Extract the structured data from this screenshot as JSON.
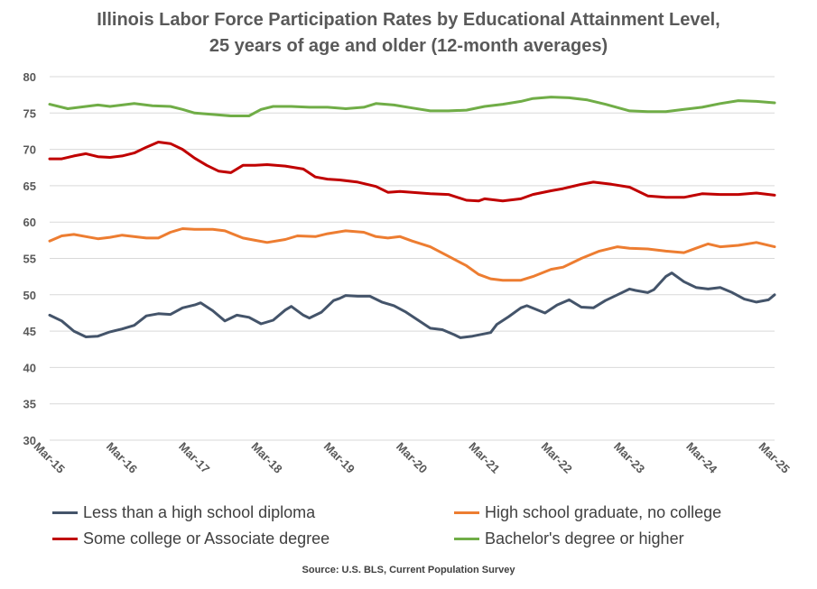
{
  "title_line1": "Illinois Labor Force Participation Rates by Educational Attainment Level,",
  "title_line2": "25 years of age and older (12-month averages)",
  "source": "Source: U.S. BLS, Current Population Survey",
  "chart_data": {
    "type": "line",
    "title": "Illinois Labor Force Participation Rates by Educational Attainment Level, 25 years of age and older (12-month averages)",
    "xlabel": "",
    "ylabel": "",
    "ylim": [
      30,
      80
    ],
    "yticks": [
      30,
      35,
      40,
      45,
      50,
      55,
      60,
      65,
      70,
      75,
      80
    ],
    "xticks": [
      "Mar-15",
      "Mar-16",
      "Mar-17",
      "Mar-18",
      "Mar-19",
      "Mar-20",
      "Mar-21",
      "Mar-22",
      "Mar-23",
      "Mar-24",
      "Mar-25"
    ],
    "x_start": "Mar-15",
    "x_end": "Mar-25",
    "grid": true,
    "legend_position": "bottom",
    "series": [
      {
        "name": "Less than a high school diploma",
        "color": "#44546A",
        "keypoints": [
          [
            "Mar-15",
            47.2
          ],
          [
            "May-15",
            46.4
          ],
          [
            "Jul-15",
            45.0
          ],
          [
            "Sep-15",
            44.2
          ],
          [
            "Nov-15",
            44.3
          ],
          [
            "Jan-16",
            44.9
          ],
          [
            "Mar-16",
            45.3
          ],
          [
            "May-16",
            45.8
          ],
          [
            "Jul-16",
            47.1
          ],
          [
            "Sep-16",
            47.4
          ],
          [
            "Nov-16",
            47.3
          ],
          [
            "Jan-17",
            48.2
          ],
          [
            "Mar-17",
            48.6
          ],
          [
            "Apr-17",
            48.9
          ],
          [
            "Jun-17",
            47.8
          ],
          [
            "Aug-17",
            46.4
          ],
          [
            "Oct-17",
            47.2
          ],
          [
            "Dec-17",
            46.9
          ],
          [
            "Feb-18",
            46.0
          ],
          [
            "Apr-18",
            46.5
          ],
          [
            "Jun-18",
            47.9
          ],
          [
            "Jul-18",
            48.4
          ],
          [
            "Sep-18",
            47.2
          ],
          [
            "Oct-18",
            46.8
          ],
          [
            "Dec-18",
            47.6
          ],
          [
            "Feb-19",
            49.2
          ],
          [
            "Mar-19",
            49.5
          ],
          [
            "Apr-19",
            49.9
          ],
          [
            "Jun-19",
            49.8
          ],
          [
            "Aug-19",
            49.8
          ],
          [
            "Oct-19",
            49.0
          ],
          [
            "Dec-19",
            48.5
          ],
          [
            "Feb-20",
            47.6
          ],
          [
            "Apr-20",
            46.5
          ],
          [
            "Jun-20",
            45.4
          ],
          [
            "Aug-20",
            45.2
          ],
          [
            "Oct-20",
            44.5
          ],
          [
            "Nov-20",
            44.1
          ],
          [
            "Jan-21",
            44.3
          ],
          [
            "Apr-21",
            44.8
          ],
          [
            "May-21",
            45.9
          ],
          [
            "Jul-21",
            47.0
          ],
          [
            "Sep-21",
            48.2
          ],
          [
            "Oct-21",
            48.5
          ],
          [
            "Jan-22",
            47.5
          ],
          [
            "Mar-22",
            48.6
          ],
          [
            "May-22",
            49.3
          ],
          [
            "Jul-22",
            48.3
          ],
          [
            "Sep-22",
            48.2
          ],
          [
            "Nov-22",
            49.2
          ],
          [
            "Jan-23",
            50.0
          ],
          [
            "Mar-23",
            50.8
          ],
          [
            "Apr-23",
            50.6
          ],
          [
            "Jun-23",
            50.3
          ],
          [
            "Jul-23",
            50.7
          ],
          [
            "Sep-23",
            52.5
          ],
          [
            "Oct-23",
            53.0
          ],
          [
            "Dec-23",
            51.8
          ],
          [
            "Feb-24",
            51.0
          ],
          [
            "Apr-24",
            50.8
          ],
          [
            "Jun-24",
            51.0
          ],
          [
            "Aug-24",
            50.3
          ],
          [
            "Oct-24",
            49.4
          ],
          [
            "Dec-24",
            49.0
          ],
          [
            "Feb-25",
            49.3
          ],
          [
            "Mar-25",
            50.0
          ]
        ]
      },
      {
        "name": "High school graduate, no college",
        "color": "#ED7D31",
        "keypoints": [
          [
            "Mar-15",
            57.4
          ],
          [
            "May-15",
            58.1
          ],
          [
            "Jul-15",
            58.3
          ],
          [
            "Sep-15",
            58.0
          ],
          [
            "Nov-15",
            57.7
          ],
          [
            "Jan-16",
            57.9
          ],
          [
            "Mar-16",
            58.2
          ],
          [
            "Jul-16",
            57.8
          ],
          [
            "Sep-16",
            57.8
          ],
          [
            "Nov-16",
            58.6
          ],
          [
            "Jan-17",
            59.1
          ],
          [
            "Mar-17",
            59.0
          ],
          [
            "Jun-17",
            59.0
          ],
          [
            "Aug-17",
            58.8
          ],
          [
            "Nov-17",
            57.8
          ],
          [
            "Jan-18",
            57.5
          ],
          [
            "Mar-18",
            57.2
          ],
          [
            "Jun-18",
            57.6
          ],
          [
            "Aug-18",
            58.1
          ],
          [
            "Nov-18",
            58.0
          ],
          [
            "Jan-19",
            58.4
          ],
          [
            "Apr-19",
            58.8
          ],
          [
            "Jul-19",
            58.6
          ],
          [
            "Sep-19",
            58.0
          ],
          [
            "Nov-19",
            57.8
          ],
          [
            "Jan-20",
            58.0
          ],
          [
            "Mar-20",
            57.4
          ],
          [
            "Jun-20",
            56.6
          ],
          [
            "Sep-20",
            55.3
          ],
          [
            "Dec-20",
            54.0
          ],
          [
            "Feb-21",
            52.8
          ],
          [
            "Apr-21",
            52.2
          ],
          [
            "Jun-21",
            52.0
          ],
          [
            "Sep-21",
            52.0
          ],
          [
            "Nov-21",
            52.5
          ],
          [
            "Feb-22",
            53.5
          ],
          [
            "Apr-22",
            53.8
          ],
          [
            "Jul-22",
            55.0
          ],
          [
            "Oct-22",
            56.0
          ],
          [
            "Jan-23",
            56.6
          ],
          [
            "Mar-23",
            56.4
          ],
          [
            "Jun-23",
            56.3
          ],
          [
            "Sep-23",
            56.0
          ],
          [
            "Dec-23",
            55.8
          ],
          [
            "Feb-24",
            56.4
          ],
          [
            "Apr-24",
            57.0
          ],
          [
            "Jun-24",
            56.6
          ],
          [
            "Sep-24",
            56.8
          ],
          [
            "Dec-24",
            57.2
          ],
          [
            "Mar-25",
            56.6
          ]
        ]
      },
      {
        "name": "Some college or Associate degree",
        "color": "#C00000",
        "keypoints": [
          [
            "Mar-15",
            68.7
          ],
          [
            "May-15",
            68.7
          ],
          [
            "Jul-15",
            69.1
          ],
          [
            "Sep-15",
            69.4
          ],
          [
            "Nov-15",
            69.0
          ],
          [
            "Jan-16",
            68.9
          ],
          [
            "Mar-16",
            69.1
          ],
          [
            "May-16",
            69.5
          ],
          [
            "Jul-16",
            70.3
          ],
          [
            "Sep-16",
            71.0
          ],
          [
            "Nov-16",
            70.8
          ],
          [
            "Jan-17",
            70.0
          ],
          [
            "Mar-17",
            68.8
          ],
          [
            "May-17",
            67.8
          ],
          [
            "Jul-17",
            67.0
          ],
          [
            "Sep-17",
            66.8
          ],
          [
            "Nov-17",
            67.8
          ],
          [
            "Jan-18",
            67.8
          ],
          [
            "Mar-18",
            67.9
          ],
          [
            "Jun-18",
            67.7
          ],
          [
            "Sep-18",
            67.3
          ],
          [
            "Nov-18",
            66.2
          ],
          [
            "Jan-19",
            65.9
          ],
          [
            "Mar-19",
            65.8
          ],
          [
            "Jun-19",
            65.5
          ],
          [
            "Sep-19",
            64.9
          ],
          [
            "Nov-19",
            64.1
          ],
          [
            "Jan-20",
            64.2
          ],
          [
            "Mar-20",
            64.1
          ],
          [
            "Jun-20",
            63.9
          ],
          [
            "Sep-20",
            63.8
          ],
          [
            "Dec-20",
            63.0
          ],
          [
            "Feb-21",
            62.9
          ],
          [
            "Mar-21",
            63.2
          ],
          [
            "Jun-21",
            62.9
          ],
          [
            "Sep-21",
            63.2
          ],
          [
            "Nov-21",
            63.8
          ],
          [
            "Feb-22",
            64.3
          ],
          [
            "Apr-22",
            64.6
          ],
          [
            "Jul-22",
            65.2
          ],
          [
            "Sep-22",
            65.5
          ],
          [
            "Dec-22",
            65.2
          ],
          [
            "Mar-23",
            64.8
          ],
          [
            "Jun-23",
            63.6
          ],
          [
            "Sep-23",
            63.4
          ],
          [
            "Dec-23",
            63.4
          ],
          [
            "Mar-24",
            63.9
          ],
          [
            "Jun-24",
            63.8
          ],
          [
            "Sep-24",
            63.8
          ],
          [
            "Dec-24",
            64.0
          ],
          [
            "Mar-25",
            63.7
          ]
        ]
      },
      {
        "name": "Bachelor's degree or higher",
        "color": "#70AD47",
        "keypoints": [
          [
            "Mar-15",
            76.2
          ],
          [
            "Jun-15",
            75.6
          ],
          [
            "Sep-15",
            75.9
          ],
          [
            "Nov-15",
            76.1
          ],
          [
            "Jan-16",
            75.9
          ],
          [
            "Mar-16",
            76.1
          ],
          [
            "May-16",
            76.3
          ],
          [
            "Aug-16",
            76.0
          ],
          [
            "Nov-16",
            75.9
          ],
          [
            "Jan-17",
            75.5
          ],
          [
            "Mar-17",
            75.0
          ],
          [
            "Jun-17",
            74.8
          ],
          [
            "Sep-17",
            74.6
          ],
          [
            "Dec-17",
            74.6
          ],
          [
            "Feb-18",
            75.5
          ],
          [
            "Apr-18",
            75.9
          ],
          [
            "Jul-18",
            75.9
          ],
          [
            "Oct-18",
            75.8
          ],
          [
            "Jan-19",
            75.8
          ],
          [
            "Apr-19",
            75.6
          ],
          [
            "Jul-19",
            75.8
          ],
          [
            "Sep-19",
            76.3
          ],
          [
            "Dec-19",
            76.1
          ],
          [
            "Mar-20",
            75.7
          ],
          [
            "Jun-20",
            75.3
          ],
          [
            "Sep-20",
            75.3
          ],
          [
            "Dec-20",
            75.4
          ],
          [
            "Mar-21",
            75.9
          ],
          [
            "Jun-21",
            76.2
          ],
          [
            "Sep-21",
            76.6
          ],
          [
            "Nov-21",
            77.0
          ],
          [
            "Feb-22",
            77.2
          ],
          [
            "May-22",
            77.1
          ],
          [
            "Aug-22",
            76.8
          ],
          [
            "Nov-22",
            76.2
          ],
          [
            "Mar-23",
            75.3
          ],
          [
            "Jun-23",
            75.2
          ],
          [
            "Sep-23",
            75.2
          ],
          [
            "Dec-23",
            75.5
          ],
          [
            "Mar-24",
            75.8
          ],
          [
            "Jun-24",
            76.3
          ],
          [
            "Sep-24",
            76.7
          ],
          [
            "Dec-24",
            76.6
          ],
          [
            "Mar-25",
            76.4
          ]
        ]
      }
    ]
  }
}
